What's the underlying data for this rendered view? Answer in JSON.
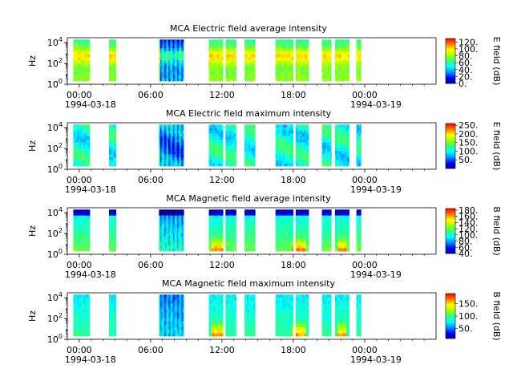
{
  "chart_data": [
    {
      "type": "heatmap",
      "title": "MCA  Electric field average intensity",
      "ylabel": "Hz",
      "colorbar_label": "E field (dB)",
      "colorbar_ticks": [
        "0.",
        "20.",
        "40.",
        "60.",
        "80.",
        "100.",
        "120."
      ],
      "colorbar_range": [
        0,
        130
      ]
    },
    {
      "type": "heatmap",
      "title": "MCA  Electric field maximum intensity",
      "ylabel": "Hz",
      "colorbar_label": "E field (dB)",
      "colorbar_ticks": [
        "50.",
        "100.",
        "150.",
        "200.",
        "250."
      ],
      "colorbar_range": [
        0,
        260
      ]
    },
    {
      "type": "heatmap",
      "title": "MCA  Magnetic field average intensity",
      "ylabel": "Hz",
      "colorbar_label": "B field (dB)",
      "colorbar_ticks": [
        "40.",
        "60.",
        "80.",
        "100.",
        "120.",
        "140.",
        "160.",
        "180."
      ],
      "colorbar_range": [
        40,
        185
      ]
    },
    {
      "type": "heatmap",
      "title": "MCA  Magnetic field maximum intensity",
      "ylabel": "Hz",
      "colorbar_label": "B field (dB)",
      "colorbar_ticks": [
        "50.",
        "100.",
        "150."
      ],
      "colorbar_range": [
        10,
        190
      ]
    }
  ],
  "shared_axes": {
    "x_range_hours": [
      -1,
      30
    ],
    "x_tick_hours": [
      0,
      6,
      12,
      18,
      24
    ],
    "x_tick_labels": [
      "00:00",
      "06:00",
      "12:00",
      "18:00",
      "00:00"
    ],
    "x_date_labels": [
      "1994-03-18",
      "",
      "",
      "",
      "1994-03-19"
    ],
    "y_scale": "log",
    "y_range": [
      1,
      30000
    ],
    "y_ticks": [
      {
        "exp": 0,
        "base": "10",
        "sup": "0"
      },
      {
        "exp": 2,
        "base": "10",
        "sup": "2"
      },
      {
        "exp": 4,
        "base": "10",
        "sup": "4"
      }
    ],
    "data_intervals_hours": [
      [
        -0.5,
        0.9
      ],
      [
        2.5,
        3.1
      ],
      [
        6.7,
        8.8
      ],
      [
        10.9,
        12.1
      ],
      [
        12.3,
        13.2
      ],
      [
        13.9,
        14.8
      ],
      [
        16.5,
        18.0
      ],
      [
        18.2,
        19.3
      ],
      [
        20.4,
        21.2
      ],
      [
        21.5,
        22.7
      ],
      [
        23.3,
        23.7
      ]
    ],
    "data_band_hz": [
      2,
      20000
    ]
  },
  "colormap_stops": [
    "#000090",
    "#0000ff",
    "#0090ff",
    "#00ffff",
    "#30ff80",
    "#a0ff00",
    "#ffff00",
    "#ff8000",
    "#ff0000"
  ]
}
